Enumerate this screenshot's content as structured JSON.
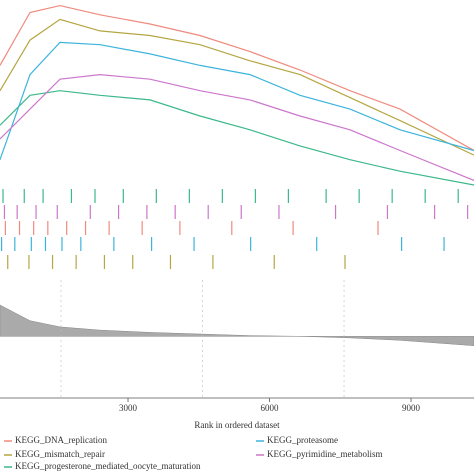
{
  "chart_data": {
    "type": "line",
    "xlabel": "Rank in ordered dataset",
    "xlim": [
      286,
      10335
    ],
    "xticks": [
      3000,
      6000,
      9000
    ],
    "ylim": [
      0,
      0.8
    ],
    "x": [
      286,
      922,
      1558,
      2406,
      3466,
      4526,
      5586,
      6646,
      7706,
      8766,
      10335
    ],
    "series": [
      {
        "name": "KEGG_DNA_replication",
        "color": "#f08a7e",
        "values": [
          0.52,
          0.75,
          0.78,
          0.74,
          0.7,
          0.65,
          0.58,
          0.5,
          0.41,
          0.33,
          0.15
        ],
        "hits": [
          400,
          700,
          1000,
          1300,
          1700,
          2100,
          2600,
          3300,
          4100,
          5200,
          6500,
          8300
        ]
      },
      {
        "name": "KEGG_mismatch_repair",
        "color": "#b5a642",
        "values": [
          0.41,
          0.63,
          0.72,
          0.67,
          0.65,
          0.61,
          0.54,
          0.48,
          0.38,
          0.28,
          0.13
        ],
        "hits": [
          450,
          900,
          1400,
          1900,
          2500,
          3100,
          3900,
          4800,
          6100,
          7600
        ]
      },
      {
        "name": "KEGG_progesterone_mediated_oocyte_maturation",
        "color": "#3cb88a",
        "values": [
          0.26,
          0.39,
          0.41,
          0.39,
          0.37,
          0.3,
          0.24,
          0.17,
          0.11,
          0.06,
          0.0
        ],
        "hits": [
          350,
          800,
          1200,
          1800,
          2300,
          2900,
          3600,
          4300,
          5000,
          5700,
          6400,
          7200,
          7900,
          8600,
          9300,
          10000
        ]
      },
      {
        "name": "KEGG_proteasome",
        "color": "#3cb4dc",
        "values": [
          0.11,
          0.48,
          0.62,
          0.61,
          0.57,
          0.52,
          0.48,
          0.39,
          0.33,
          0.24,
          0.15
        ],
        "hits": [
          320,
          600,
          950,
          1250,
          1600,
          2000,
          2700,
          3500,
          4400,
          5600,
          7000,
          8800,
          9700
        ]
      },
      {
        "name": "KEGG_pyrimidine_metabolism",
        "color": "#cc77cc",
        "values": [
          0.2,
          0.33,
          0.46,
          0.48,
          0.46,
          0.41,
          0.37,
          0.3,
          0.24,
          0.15,
          0.02
        ],
        "hits": [
          380,
          650,
          1050,
          1500,
          2200,
          2800,
          3400,
          4000,
          4700,
          5400,
          6200,
          7400,
          8500,
          9500,
          10200
        ]
      }
    ],
    "metric": {
      "ylim": [
        -1,
        2
      ],
      "values": [
        2.0,
        1.0,
        0.6,
        0.4,
        0.25,
        0.15,
        0.05,
        0,
        -0.1,
        -0.25,
        -0.6
      ],
      "color": "#aaaaaa"
    }
  }
}
